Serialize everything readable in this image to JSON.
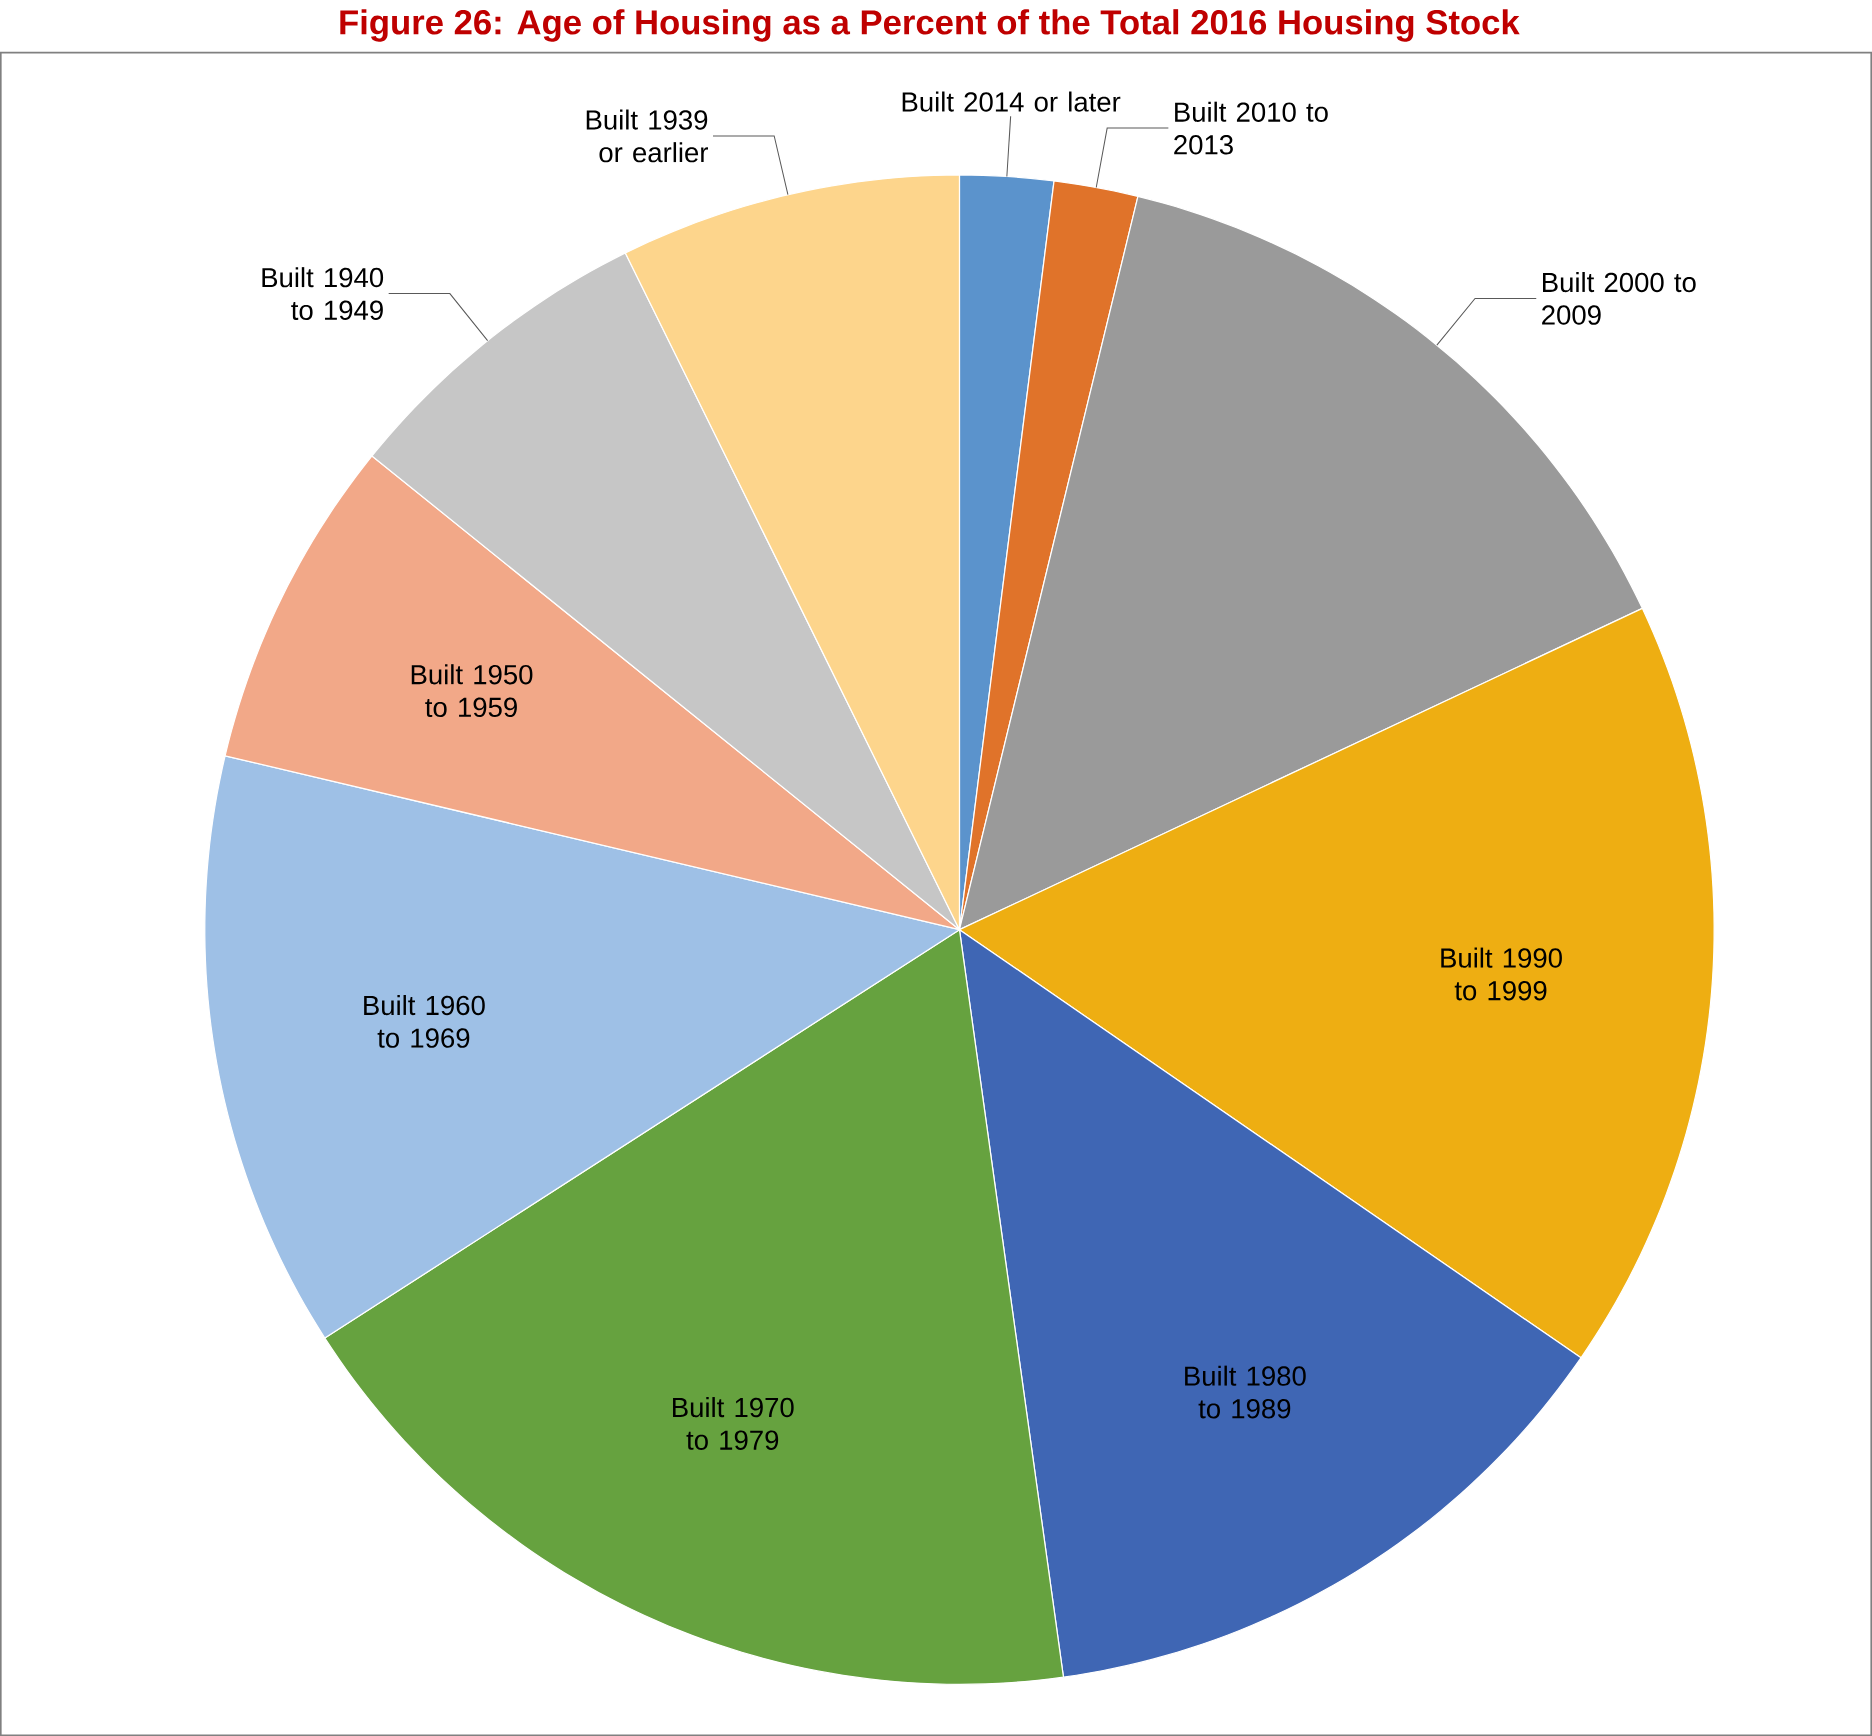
{
  "chart_data": {
    "type": "pie",
    "title": "Figure 26: Age of Housing as a Percent of the Total 2016 Housing Stock",
    "categories": [
      "Built 2014 or later",
      "Built 2010 to 2013",
      "Built 2000 to 2009",
      "Built 1990 to 1999",
      "Built 1980 to 1989",
      "Built 1970 to 1979",
      "Built 1960 to 1969",
      "Built 1950 to 1959",
      "Built 1940 to 1949",
      "Built 1939 or earlier"
    ],
    "values": [
      2.0,
      1.8,
      14.2,
      16.6,
      13.2,
      18.1,
      12.8,
      7.1,
      6.9,
      7.3
    ],
    "colors": [
      "#5b93cc",
      "#e0732a",
      "#9a9a9a",
      "#eeae12",
      "#3f66b4",
      "#66a23f",
      "#9ec0e6",
      "#f2a888",
      "#c6c6c6",
      "#fdd58c"
    ]
  }
}
